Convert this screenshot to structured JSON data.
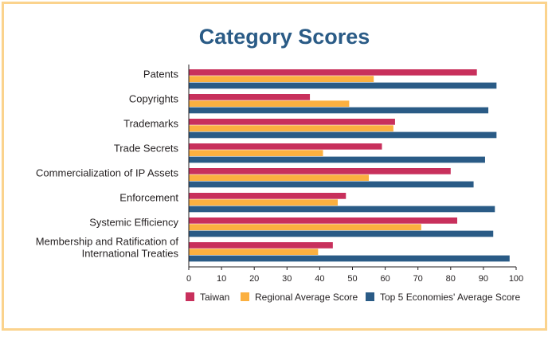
{
  "chart_data": {
    "type": "bar",
    "orientation": "horizontal",
    "title": "Category Scores",
    "categories": [
      [
        "Patents"
      ],
      [
        "Copyrights"
      ],
      [
        "Trademarks"
      ],
      [
        "Trade Secrets"
      ],
      [
        "Commercialization of IP Assets"
      ],
      [
        "Enforcement"
      ],
      [
        "Systemic Efficiency"
      ],
      [
        "Membership and Ratification of",
        "International Treaties"
      ]
    ],
    "series": [
      {
        "name": "Taiwan",
        "color": "#c8305c",
        "values": [
          88,
          37,
          63,
          59,
          80,
          48,
          82,
          44
        ]
      },
      {
        "name": "Regional Average Score",
        "color": "#fbb040",
        "values": [
          56.5,
          49,
          62.5,
          41,
          55,
          45.5,
          71,
          39.5
        ]
      },
      {
        "name": "Top 5 Economies' Average Score",
        "color": "#2a5b86",
        "values": [
          94,
          91.5,
          94,
          90.5,
          87,
          93.5,
          93,
          98
        ]
      }
    ],
    "x_ticks": [
      0,
      10,
      20,
      30,
      40,
      50,
      60,
      70,
      80,
      90,
      100
    ],
    "xlim": [
      0,
      100
    ],
    "grid": false,
    "legend_position": "bottom"
  }
}
